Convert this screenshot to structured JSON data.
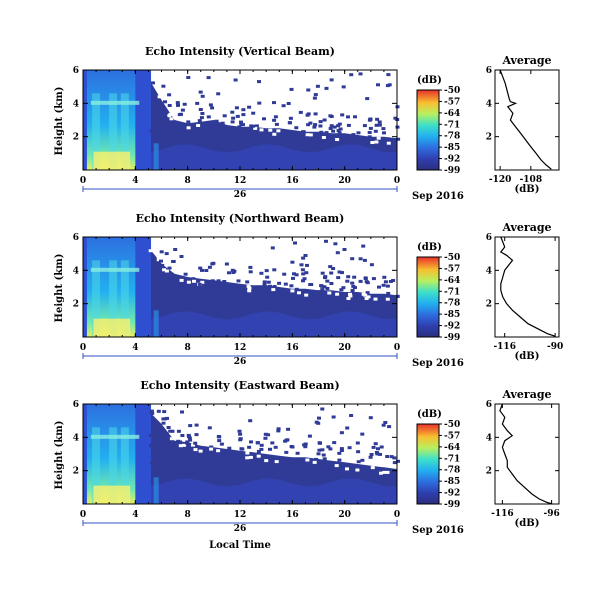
{
  "chart_data": [
    {
      "type": "heatmap",
      "title": "Echo Intensity (Vertical Beam)",
      "ylabel": "Height (km)",
      "xlabel": "",
      "x_ticks": [
        "0",
        "4",
        "8",
        "12",
        "16",
        "20",
        "0"
      ],
      "y_ticks": [
        "6",
        "4",
        "2"
      ],
      "xlim": [
        0,
        24
      ],
      "ylim": [
        0,
        6
      ],
      "date_day": "26",
      "date_month": "Sep 2016",
      "colorbar_unit": "(dB)",
      "colorbar_ticks": [
        "-50",
        "-57",
        "-64",
        "-71",
        "-78",
        "-85",
        "-92",
        "-99"
      ],
      "colorbar_range": [
        -99,
        -50
      ],
      "echo_top_km": [
        6,
        6,
        6,
        6,
        6,
        5.5,
        4.2,
        3.0,
        2.8,
        2.9,
        3.0,
        2.7,
        2.6,
        2.6,
        2.5,
        2.5,
        2.4,
        2.3,
        2.3,
        2.2,
        2.2,
        2.1,
        2.0,
        2.0,
        1.9
      ]
    },
    {
      "type": "heatmap",
      "title": "Echo Intensity (Northward Beam)",
      "ylabel": "Height (km)",
      "xlabel": "",
      "x_ticks": [
        "0",
        "4",
        "8",
        "12",
        "16",
        "20",
        "0"
      ],
      "y_ticks": [
        "6",
        "4",
        "2"
      ],
      "xlim": [
        0,
        24
      ],
      "ylim": [
        0,
        6
      ],
      "date_day": "26",
      "date_month": "Sep 2016",
      "colorbar_unit": "(dB)",
      "colorbar_ticks": [
        "-50",
        "-57",
        "-64",
        "-71",
        "-78",
        "-85",
        "-92",
        "-99"
      ],
      "colorbar_range": [
        -99,
        -50
      ],
      "echo_top_km": [
        6,
        6,
        6,
        6,
        6,
        5.4,
        4.4,
        3.8,
        3.6,
        3.5,
        3.4,
        3.3,
        3.2,
        3.1,
        3.1,
        3.0,
        2.9,
        2.9,
        2.8,
        2.8,
        2.7,
        2.7,
        2.6,
        2.6,
        2.5
      ]
    },
    {
      "type": "heatmap",
      "title": "Echo Intensity (Eastward Beam)",
      "ylabel": "Height (km)",
      "xlabel": "Local Time",
      "x_ticks": [
        "0",
        "4",
        "8",
        "12",
        "16",
        "20",
        "0"
      ],
      "y_ticks": [
        "6",
        "4",
        "2"
      ],
      "xlim": [
        0,
        24
      ],
      "ylim": [
        0,
        6
      ],
      "date_day": "26",
      "date_month": "Sep 2016",
      "colorbar_unit": "(dB)",
      "colorbar_ticks": [
        "-50",
        "-57",
        "-64",
        "-71",
        "-78",
        "-85",
        "-92",
        "-99"
      ],
      "colorbar_range": [
        -99,
        -50
      ],
      "echo_top_km": [
        6,
        6,
        6,
        6,
        6,
        5.6,
        4.8,
        3.8,
        3.7,
        3.5,
        3.4,
        3.3,
        3.2,
        3.1,
        3.0,
        2.9,
        2.8,
        2.8,
        2.7,
        2.6,
        2.5,
        2.4,
        2.3,
        2.2,
        2.1
      ]
    },
    {
      "type": "line",
      "title": "Average",
      "xlabel": "(dB)",
      "x_ticks": [
        "-120",
        "-108"
      ],
      "y_ticks": [
        "6",
        "4",
        "2"
      ],
      "xlim": [
        -122,
        -97
      ],
      "ylim": [
        0,
        6
      ],
      "x": [
        -120,
        -119,
        -118,
        -117,
        -116.5,
        -116,
        -114,
        -117,
        -115,
        -116,
        -114,
        -112,
        -110,
        -108,
        -106,
        -104,
        -102,
        -100
      ],
      "y": [
        6,
        5.6,
        5.2,
        4.6,
        4.3,
        4.1,
        4.0,
        3.8,
        3.4,
        3.0,
        2.6,
        2.2,
        1.8,
        1.4,
        1.0,
        0.6,
        0.3,
        0.05
      ]
    },
    {
      "type": "line",
      "title": "Average",
      "xlabel": "(dB)",
      "x_ticks": [
        "-116",
        "-90"
      ],
      "y_ticks": [
        "6",
        "4",
        "2"
      ],
      "xlim": [
        -121,
        -88
      ],
      "ylim": [
        0,
        6
      ],
      "x": [
        -118,
        -117,
        -116,
        -118,
        -115,
        -112,
        -114,
        -116,
        -117,
        -118,
        -118,
        -117,
        -115,
        -112,
        -108,
        -104,
        -99,
        -94,
        -90
      ],
      "y": [
        6,
        5.7,
        5.4,
        5.1,
        4.9,
        4.6,
        4.3,
        4.0,
        3.6,
        3.2,
        2.8,
        2.4,
        2.0,
        1.6,
        1.2,
        0.8,
        0.5,
        0.2,
        0.05
      ]
    },
    {
      "type": "line",
      "title": "Average",
      "xlabel": "(dB)",
      "x_ticks": [
        "-116",
        "-96"
      ],
      "y_ticks": [
        "6",
        "4",
        "2"
      ],
      "xlim": [
        -119,
        -93
      ],
      "ylim": [
        0,
        6
      ],
      "x": [
        -116,
        -117,
        -115,
        -116,
        -114,
        -112,
        -115,
        -116,
        -115,
        -114,
        -114,
        -112,
        -110,
        -107,
        -104,
        -101,
        -98,
        -96
      ],
      "y": [
        6,
        5.6,
        5.2,
        4.8,
        4.4,
        4.1,
        3.8,
        3.4,
        3.0,
        2.6,
        2.2,
        1.8,
        1.4,
        1.0,
        0.6,
        0.3,
        0.1,
        0.02
      ]
    }
  ]
}
